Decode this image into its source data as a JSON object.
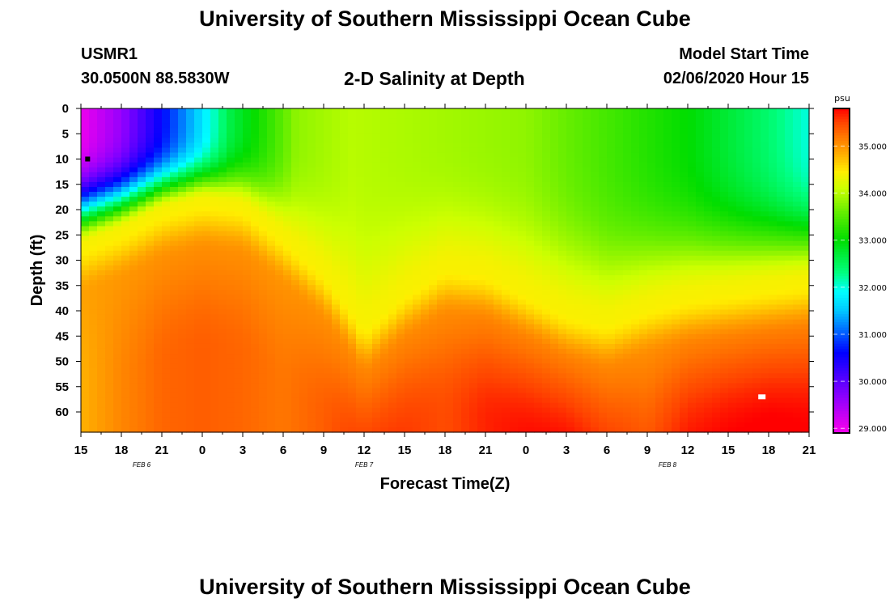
{
  "page": {
    "title_top": "University of Southern Mississippi Ocean Cube",
    "title_bottom": "University of Southern Mississippi Ocean Cube"
  },
  "header": {
    "station": "USMR1",
    "coords": "30.0500N 88.5830W",
    "plot_title": "2-D Salinity at Depth",
    "start_label": "Model Start Time",
    "start_value": "02/06/2020 Hour 15"
  },
  "colors": {
    "scale": [
      "#ee00ee",
      "#8800ff",
      "#0000ff",
      "#00c8ff",
      "#00ffff",
      "#00ff80",
      "#00dd00",
      "#66ee00",
      "#ccff00",
      "#ffee00",
      "#ffaa00",
      "#ff7700",
      "#ff4400",
      "#ff0000"
    ],
    "scale_stops": [
      29.0,
      29.7,
      30.6,
      31.5,
      31.9,
      32.3,
      33.0,
      33.6,
      34.1,
      34.45,
      34.85,
      35.2,
      35.5,
      35.8
    ],
    "marker_low": "#000000",
    "marker_high": "#ffffff"
  },
  "chart_data": {
    "type": "heatmap",
    "title": "2-D Salinity at Depth",
    "xlabel": "Forecast Time(Z)",
    "ylabel": "Depth (ft)",
    "units": "psu",
    "x_hours": [
      0,
      3,
      6,
      9,
      12,
      15,
      18,
      21,
      24,
      27,
      30,
      33,
      36,
      39,
      42,
      45,
      48,
      51,
      54
    ],
    "x_tick_labels": [
      "15",
      "18",
      "21",
      "0",
      "3",
      "6",
      "9",
      "12",
      "15",
      "18",
      "21",
      "0",
      "3",
      "6",
      "9",
      "12",
      "15",
      "18",
      "21"
    ],
    "date_labels": [
      {
        "text": "FEB 6",
        "hour": 4.5
      },
      {
        "text": "FEB 7",
        "hour": 21
      },
      {
        "text": "FEB 8",
        "hour": 43.5
      }
    ],
    "y_ticks": [
      0,
      5,
      10,
      15,
      20,
      25,
      30,
      35,
      40,
      45,
      50,
      55,
      60
    ],
    "xlim": [
      0,
      54
    ],
    "ylim": [
      0,
      64
    ],
    "colorbar_ticks": [
      35.0,
      34.0,
      33.0,
      32.0,
      31.0,
      30.0,
      29.0
    ],
    "colorbar_tick_labels": [
      "35.000",
      "34.000",
      "33.000",
      "32.000",
      "31.000",
      "30.000",
      "29.000"
    ],
    "colorbar_range": [
      28.9,
      35.8
    ],
    "interface_depth": [
      [
        0,
        27
      ],
      [
        3,
        24
      ],
      [
        6,
        20
      ],
      [
        9,
        18
      ],
      [
        12,
        19
      ],
      [
        15,
        25
      ],
      [
        18,
        32
      ],
      [
        20,
        39
      ],
      [
        21,
        43
      ],
      [
        24,
        36
      ],
      [
        27,
        31
      ],
      [
        30,
        32
      ],
      [
        33,
        36
      ],
      [
        36,
        40
      ],
      [
        39,
        42
      ],
      [
        42,
        39
      ],
      [
        45,
        37
      ],
      [
        48,
        36
      ],
      [
        51,
        35
      ],
      [
        54,
        34
      ]
    ],
    "fresh_surface": [
      [
        0,
        29.0
      ],
      [
        3,
        29.6
      ],
      [
        6,
        30.6
      ],
      [
        9,
        31.7
      ],
      [
        11,
        32.6
      ],
      [
        14,
        33.3
      ],
      [
        16,
        33.8
      ],
      [
        20,
        34.0
      ],
      [
        27,
        33.9
      ],
      [
        33,
        33.8
      ],
      [
        39,
        33.4
      ],
      [
        45,
        33.0
      ],
      [
        51,
        32.4
      ],
      [
        54,
        32.0
      ]
    ],
    "bottom_salinity": [
      [
        0,
        34.8
      ],
      [
        3,
        35.1
      ],
      [
        6,
        35.3
      ],
      [
        9,
        35.35
      ],
      [
        12,
        35.3
      ],
      [
        15,
        35.2
      ],
      [
        18,
        35.35
      ],
      [
        21,
        35.6
      ],
      [
        24,
        35.55
      ],
      [
        27,
        35.45
      ],
      [
        30,
        35.65
      ],
      [
        33,
        35.75
      ],
      [
        36,
        35.8
      ],
      [
        39,
        35.6
      ],
      [
        42,
        35.4
      ],
      [
        45,
        35.7
      ],
      [
        48,
        35.8
      ],
      [
        51,
        35.85
      ],
      [
        54,
        35.8
      ]
    ],
    "markers": [
      {
        "label": "min",
        "hour": 0.5,
        "depth": 10
      },
      {
        "label": "max",
        "hour": 50.5,
        "depth": 57
      }
    ]
  },
  "axes": {
    "xlabel": "Forecast Time(Z)",
    "ylabel": "Depth (ft)",
    "colorbar_unit": "psu"
  }
}
